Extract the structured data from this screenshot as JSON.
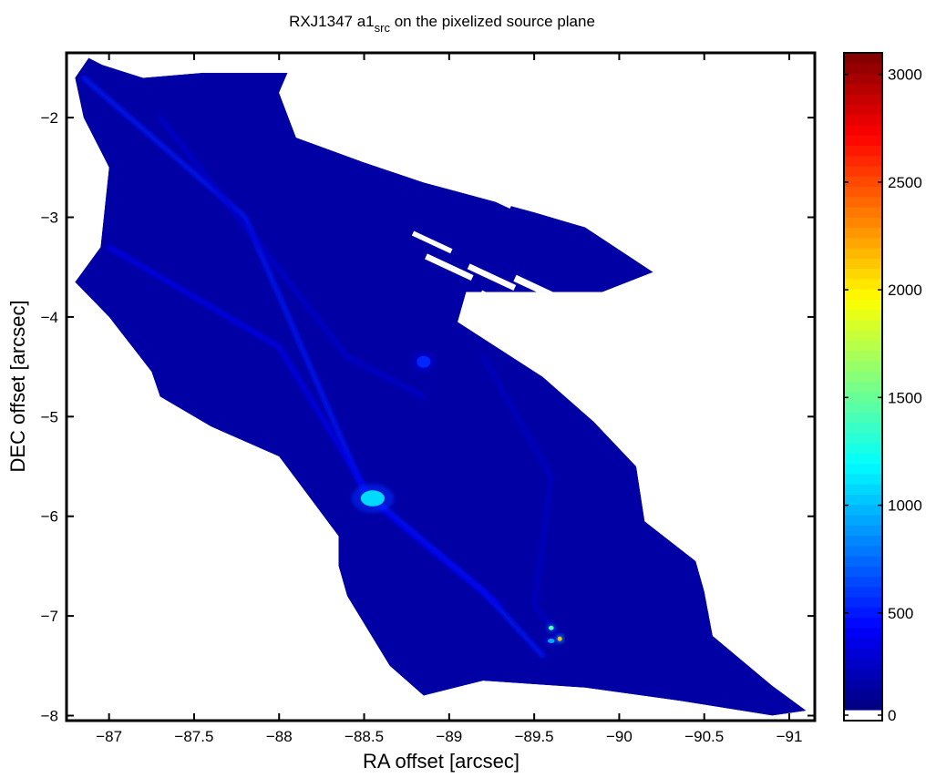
{
  "chart_data": {
    "type": "heatmap",
    "title": {
      "main": "RXJ1347 a1",
      "subscript": "src",
      "rest": " on the pixelized source plane"
    },
    "xlabel": "RA offset [arcsec]",
    "ylabel": "DEC offset [arcsec]",
    "xlim": [
      -86.75,
      -91.15
    ],
    "ylim": [
      -8.05,
      -1.35
    ],
    "x_axis_reversed": true,
    "xticks": [
      -87,
      -87.5,
      -88,
      -88.5,
      -89,
      -89.5,
      -90,
      -90.5,
      -91
    ],
    "xtick_labels": [
      "−87",
      "−87.5",
      "−88",
      "−88.5",
      "−89",
      "−89.5",
      "−90",
      "−90.5",
      "−91"
    ],
    "yticks": [
      -2,
      -3,
      -4,
      -5,
      -6,
      -7,
      -8
    ],
    "ytick_labels": [
      "−2",
      "−3",
      "−4",
      "−5",
      "−6",
      "−7",
      "−8"
    ],
    "colorbar": {
      "colormap": "jet",
      "range": [
        0,
        3100
      ],
      "ticks": [
        0,
        500,
        1000,
        1500,
        2000,
        2500,
        3000
      ],
      "tick_labels": [
        "0",
        "500",
        "1000",
        "1500",
        "2000",
        "2500",
        "3000"
      ],
      "bottom_color": "#ffffff"
    },
    "region_outline": [
      [
        -86.88,
        -1.4
      ],
      [
        -86.96,
        -1.47
      ],
      [
        -87.2,
        -1.6
      ],
      [
        -87.55,
        -1.55
      ],
      [
        -88.05,
        -1.55
      ],
      [
        -88.0,
        -1.75
      ],
      [
        -88.1,
        -2.2
      ],
      [
        -88.5,
        -2.45
      ],
      [
        -88.85,
        -2.65
      ],
      [
        -89.5,
        -2.95
      ],
      [
        -89.8,
        -3.1
      ],
      [
        -90.2,
        -3.55
      ],
      [
        -89.9,
        -3.75
      ],
      [
        -89.1,
        -3.75
      ],
      [
        -89.05,
        -4.05
      ],
      [
        -89.55,
        -4.6
      ],
      [
        -89.85,
        -5.05
      ],
      [
        -90.1,
        -5.5
      ],
      [
        -90.15,
        -6.05
      ],
      [
        -90.45,
        -6.45
      ],
      [
        -90.5,
        -6.75
      ],
      [
        -90.55,
        -7.2
      ],
      [
        -90.9,
        -7.7
      ],
      [
        -91.1,
        -7.95
      ],
      [
        -90.9,
        -8.0
      ],
      [
        -90.35,
        -7.85
      ],
      [
        -89.8,
        -7.72
      ],
      [
        -89.2,
        -7.65
      ],
      [
        -88.85,
        -7.8
      ],
      [
        -88.65,
        -7.5
      ],
      [
        -88.4,
        -6.8
      ],
      [
        -88.35,
        -6.5
      ],
      [
        -88.35,
        -6.2
      ],
      [
        -88.0,
        -5.4
      ],
      [
        -87.6,
        -5.1
      ],
      [
        -87.3,
        -4.8
      ],
      [
        -87.25,
        -4.55
      ],
      [
        -87.0,
        -4.0
      ],
      [
        -86.8,
        -3.65
      ],
      [
        -86.95,
        -3.3
      ],
      [
        -87.0,
        -2.5
      ],
      [
        -86.85,
        -2.0
      ],
      [
        -86.8,
        -1.6
      ]
    ],
    "holes": [
      [
        -88.8,
        -2.4,
        0.25,
        0.06
      ],
      [
        -88.95,
        -2.55,
        0.3,
        0.05
      ],
      [
        -89.25,
        -2.8,
        0.25,
        0.05
      ],
      [
        -89.5,
        -3.7,
        0.25,
        0.07
      ],
      [
        -89.25,
        -3.6,
        0.3,
        0.06
      ],
      [
        -89.0,
        -3.5,
        0.3,
        0.06
      ],
      [
        -88.9,
        -3.25,
        0.25,
        0.05
      ],
      [
        -89.3,
        -3.85,
        0.25,
        0.06
      ],
      [
        -88.5,
        -2.1,
        0.15,
        0.05
      ]
    ],
    "filaments": [
      {
        "points": [
          [
            -86.85,
            -1.6
          ],
          [
            -87.8,
            -3.0
          ],
          [
            -88.5,
            -5.75
          ],
          [
            -89.2,
            -6.75
          ],
          [
            -89.55,
            -7.4
          ]
        ],
        "intensity": 450
      },
      {
        "points": [
          [
            -87.0,
            -3.3
          ],
          [
            -88.0,
            -4.3
          ],
          [
            -88.55,
            -5.85
          ],
          [
            -89.3,
            -6.9
          ]
        ],
        "intensity": 350
      },
      {
        "points": [
          [
            -87.3,
            -2.0
          ],
          [
            -88.4,
            -4.4
          ],
          [
            -88.85,
            -4.8
          ]
        ],
        "intensity": 250
      },
      {
        "points": [
          [
            -89.2,
            -4.4
          ],
          [
            -89.6,
            -5.6
          ],
          [
            -89.5,
            -6.9
          ],
          [
            -89.65,
            -7.2
          ]
        ],
        "intensity": 220
      }
    ],
    "hotspots": [
      {
        "x": -88.55,
        "y": -5.82,
        "value": 1050,
        "sx": 0.07,
        "sy": 0.08
      },
      {
        "x": -88.85,
        "y": -4.45,
        "value": 500,
        "sx": 0.04,
        "sy": 0.06
      },
      {
        "x": -89.6,
        "y": -7.12,
        "value": 1400,
        "sx": 0.015,
        "sy": 0.02
      },
      {
        "x": -89.65,
        "y": -7.23,
        "value": 2100,
        "sx": 0.012,
        "sy": 0.015
      },
      {
        "x": -89.6,
        "y": -7.25,
        "value": 900,
        "sx": 0.02,
        "sy": 0.02
      }
    ],
    "background_value": 110,
    "grid": false
  }
}
